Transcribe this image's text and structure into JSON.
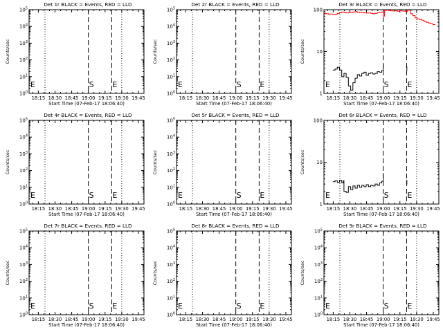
{
  "figure": {
    "ylabel": "Counts/sec",
    "xlabel": "Start Time (07-Feb-17 18:06:40)",
    "xticks": [
      "18:15",
      "18:30",
      "18:45",
      "19:00",
      "19:15",
      "19:30",
      "19:45"
    ]
  },
  "colors": {
    "events": "#000000",
    "lld": "#ff0000"
  },
  "chart_data": [
    {
      "type": "line",
      "title": "Det 1r BLACK = Events, RED = LLD",
      "xlabel": "Start Time (07-Feb-17 18:06:40)",
      "ylabel": "Counts/sec",
      "y_scale": "log",
      "ylim": [
        1,
        100000
      ],
      "yticks": [
        "10^0",
        "10^1",
        "10^2",
        "10^3",
        "10^4",
        "10^5"
      ],
      "xlim": [
        "18:06:40",
        "19:50:00"
      ],
      "markers": [
        {
          "label": "E",
          "time": "18:06:40",
          "style": "none"
        },
        {
          "label": "S",
          "time": "19:00",
          "style": "dashed"
        },
        {
          "label": "E",
          "time": "19:21",
          "style": "dashed"
        }
      ],
      "night_lines": [
        "18:21",
        "19:30"
      ],
      "series": []
    },
    {
      "type": "line",
      "title": "Det 2r BLACK = Events, RED = LLD",
      "xlabel": "Start Time (07-Feb-17 18:06:40)",
      "ylabel": "Counts/sec",
      "y_scale": "log",
      "ylim": [
        1,
        100000
      ],
      "yticks": [
        "10^0",
        "10^1",
        "10^2",
        "10^3",
        "10^4",
        "10^5"
      ],
      "xlim": [
        "18:06:40",
        "19:50:00"
      ],
      "markers": [
        {
          "label": "E",
          "time": "18:06:40",
          "style": "none"
        },
        {
          "label": "S",
          "time": "19:00",
          "style": "dashed"
        },
        {
          "label": "E",
          "time": "19:21",
          "style": "dashed"
        }
      ],
      "night_lines": [
        "18:21",
        "19:30"
      ],
      "series": []
    },
    {
      "type": "line",
      "title": "Det 3r BLACK = Events, RED = LLD",
      "xlabel": "Start Time (07-Feb-17 18:06:40)",
      "ylabel": "Counts/sec",
      "y_scale": "log",
      "ylim": [
        1,
        100
      ],
      "yticks": [
        "1",
        "10",
        "100"
      ],
      "xlim": [
        "18:06:40",
        "19:50:00"
      ],
      "markers": [
        {
          "label": "E",
          "time": "18:06:40",
          "style": "none"
        },
        {
          "label": "S",
          "time": "19:00",
          "style": "dashed"
        },
        {
          "label": "E",
          "time": "19:21",
          "style": "dashed"
        }
      ],
      "night_lines": [
        "18:21",
        "19:30"
      ],
      "series": [
        {
          "color": "red",
          "x": [
            0,
            2,
            4,
            6,
            8,
            10,
            12,
            14,
            16,
            18,
            20,
            22,
            24,
            26,
            28,
            30,
            32,
            34,
            36,
            38,
            40,
            42,
            44,
            46,
            48,
            50,
            52,
            53.3,
            54.5,
            56,
            58,
            60,
            62,
            64,
            66,
            68,
            70,
            72,
            74.3,
            75.2,
            76,
            78,
            80,
            82,
            84,
            86,
            88,
            90,
            92,
            94,
            96,
            98,
            100
          ],
          "y": [
            82,
            80,
            78,
            79,
            78,
            77,
            82,
            85,
            88,
            86,
            84,
            85,
            86,
            88,
            90,
            87,
            85,
            86,
            84,
            83,
            84,
            82,
            80,
            82,
            85,
            86,
            88,
            70,
            95,
            98,
            96,
            94,
            93,
            94,
            92,
            95,
            93,
            92,
            90,
            98,
            97,
            80,
            72,
            64,
            60,
            58,
            56,
            52,
            50,
            48,
            46,
            44,
            43
          ]
        },
        {
          "color": "black",
          "x": [
            8,
            10,
            12,
            14,
            16,
            18,
            20,
            22,
            24,
            26,
            28,
            30,
            32,
            34,
            36,
            38,
            40,
            42,
            44,
            46,
            48,
            50,
            52,
            53.3
          ],
          "y": [
            3.6,
            3.8,
            4.2,
            3.6,
            2.5,
            3.0,
            2.4,
            1.5,
            1.2,
            1.8,
            2.3,
            2.8,
            2.6,
            3.0,
            3.2,
            2.7,
            3.0,
            3.1,
            2.9,
            3.0,
            3.3,
            3.2,
            3.5,
            5.0
          ]
        },
        {
          "color": "black",
          "x": [
            74.3,
            74.6
          ],
          "y": [
            3.5,
            4.5
          ]
        }
      ]
    },
    {
      "type": "line",
      "title": "Det 4r BLACK = Events, RED = LLD",
      "xlabel": "Start Time (07-Feb-17 18:06:40)",
      "ylabel": "Counts/sec",
      "y_scale": "log",
      "ylim": [
        1,
        100000
      ],
      "yticks": [
        "10^0",
        "10^1",
        "10^2",
        "10^3",
        "10^4",
        "10^5"
      ],
      "xlim": [
        "18:06:40",
        "19:50:00"
      ],
      "markers": [
        {
          "label": "E",
          "time": "18:06:40",
          "style": "none"
        },
        {
          "label": "S",
          "time": "19:00",
          "style": "dashed"
        },
        {
          "label": "E",
          "time": "19:21",
          "style": "dashed"
        }
      ],
      "night_lines": [
        "18:21",
        "19:30"
      ],
      "series": []
    },
    {
      "type": "line",
      "title": "Det 5r BLACK = Events, RED = LLD",
      "xlabel": "Start Time (07-Feb-17 18:06:40)",
      "ylabel": "Counts/sec",
      "y_scale": "log",
      "ylim": [
        1,
        100000
      ],
      "yticks": [
        "10^0",
        "10^1",
        "10^2",
        "10^3",
        "10^4",
        "10^5"
      ],
      "xlim": [
        "18:06:40",
        "19:50:00"
      ],
      "markers": [
        {
          "label": "E",
          "time": "18:06:40",
          "style": "none"
        },
        {
          "label": "S",
          "time": "19:00",
          "style": "dashed"
        },
        {
          "label": "E",
          "time": "19:21",
          "style": "dashed"
        }
      ],
      "night_lines": [
        "18:21",
        "19:30"
      ],
      "series": []
    },
    {
      "type": "line",
      "title": "Det 6r BLACK = Events, RED = LLD",
      "xlabel": "Start Time (07-Feb-17 18:06:40)",
      "ylabel": "Counts/sec",
      "y_scale": "log",
      "ylim": [
        1,
        100
      ],
      "yticks": [
        "1",
        "10",
        "100"
      ],
      "xlim": [
        "18:06:40",
        "19:50:00"
      ],
      "markers": [
        {
          "label": "E",
          "time": "18:06:40",
          "style": "none"
        },
        {
          "label": "S",
          "time": "19:00",
          "style": "dashed"
        },
        {
          "label": "E",
          "time": "19:21",
          "style": "dashed"
        }
      ],
      "night_lines": [
        "18:21",
        "19:30"
      ],
      "series": [
        {
          "color": "black",
          "x": [
            8,
            10,
            12,
            14,
            16,
            17.5,
            18,
            20,
            22,
            24,
            26,
            28,
            30,
            32,
            34,
            36,
            38,
            40,
            42,
            44,
            46,
            48,
            50,
            52,
            53.3
          ],
          "y": [
            3.4,
            3.6,
            3.3,
            3.7,
            3.2,
            3.6,
            2.0,
            1.9,
            2.6,
            2.2,
            2.7,
            2.4,
            2.8,
            2.5,
            2.8,
            2.6,
            2.9,
            2.6,
            2.8,
            2.7,
            3.0,
            2.8,
            3.2,
            3.5,
            5.5
          ]
        },
        {
          "color": "black",
          "x": [
            74.3,
            74.6
          ],
          "y": [
            3.0,
            3.8
          ]
        }
      ]
    },
    {
      "type": "line",
      "title": "Det 7r BLACK = Events, RED = LLD",
      "xlabel": "Start Time (07-Feb-17 18:06:40)",
      "ylabel": "Counts/sec",
      "y_scale": "log",
      "ylim": [
        1,
        100000
      ],
      "yticks": [
        "10^0",
        "10^1",
        "10^2",
        "10^3",
        "10^4",
        "10^5"
      ],
      "xlim": [
        "18:06:40",
        "19:50:00"
      ],
      "markers": [
        {
          "label": "E",
          "time": "18:06:40",
          "style": "none"
        },
        {
          "label": "S",
          "time": "19:00",
          "style": "dashed"
        },
        {
          "label": "E",
          "time": "19:21",
          "style": "dashed"
        }
      ],
      "night_lines": [
        "18:21",
        "19:30"
      ],
      "series": []
    },
    {
      "type": "line",
      "title": "Det 8r BLACK = Events, RED = LLD",
      "xlabel": "Start Time (07-Feb-17 18:06:40)",
      "ylabel": "Counts/sec",
      "y_scale": "log",
      "ylim": [
        1,
        100000
      ],
      "yticks": [
        "10^0",
        "10^1",
        "10^2",
        "10^3",
        "10^4",
        "10^5"
      ],
      "xlim": [
        "18:06:40",
        "19:50:00"
      ],
      "markers": [
        {
          "label": "E",
          "time": "18:06:40",
          "style": "none"
        },
        {
          "label": "S",
          "time": "19:00",
          "style": "dashed"
        },
        {
          "label": "E",
          "time": "19:21",
          "style": "dashed"
        }
      ],
      "night_lines": [
        "18:21",
        "19:30"
      ],
      "series": []
    },
    {
      "type": "line",
      "title": "Det 9r BLACK = Events, RED = LLD",
      "xlabel": "Start Time (07-Feb-17 18:06:40)",
      "ylabel": "Counts/sec",
      "y_scale": "log",
      "ylim": [
        1,
        100000
      ],
      "yticks": [
        "10^0",
        "10^1",
        "10^2",
        "10^3",
        "10^4",
        "10^5"
      ],
      "xlim": [
        "18:06:40",
        "19:50:00"
      ],
      "markers": [
        {
          "label": "E",
          "time": "18:06:40",
          "style": "none"
        },
        {
          "label": "S",
          "time": "19:00",
          "style": "dashed"
        },
        {
          "label": "E",
          "time": "19:21",
          "style": "dashed"
        }
      ],
      "night_lines": [
        "18:21",
        "19:30"
      ],
      "series": []
    }
  ]
}
